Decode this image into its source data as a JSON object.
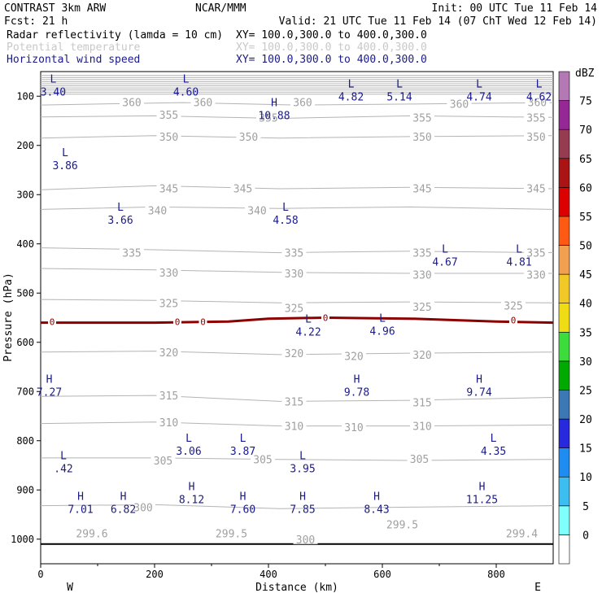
{
  "header": {
    "line1_left": "CONTRAST  3km ARW",
    "line1_center": "NCAR/MMM",
    "line1_right": "Init: 00 UTC Tue 11 Feb 14",
    "line2_left": "Fcst:   21 h",
    "line2_right": "Valid: 21 UTC Tue 11 Feb 14 (07 ChT Wed 12 Feb 14)",
    "fields": [
      {
        "name": "Radar reflectivity (lamda = 10 cm)",
        "xy": "XY= 100.0,300.0 to 400.0,300.0",
        "color": "#000000"
      },
      {
        "name": "Potential temperature",
        "xy": "XY= 100.0,300.0 to 400.0,300.0",
        "color": "#c8c8c8"
      },
      {
        "name": "Horizontal wind speed",
        "xy": "XY= 100.0,300.0 to 400.0,300.0",
        "color": "#1a1a8c"
      }
    ]
  },
  "colorbar": {
    "unit": "dBZ",
    "levels": [
      0,
      5,
      10,
      15,
      20,
      25,
      30,
      35,
      40,
      45,
      50,
      55,
      60,
      65,
      70,
      75
    ],
    "colors": [
      "#ffffff",
      "#80ffff",
      "#3cbef0",
      "#1e8cf0",
      "#2828dc",
      "#3c78b4",
      "#00aa00",
      "#3cdc3c",
      "#f0dc14",
      "#f0c828",
      "#f0a050",
      "#ff5a14",
      "#dc0000",
      "#aa1414",
      "#963c50",
      "#962896",
      "#b478b4"
    ]
  },
  "chart_data": {
    "type": "cross-section",
    "xlabel": "Distance (km)",
    "ylabel": "Pressure (hPa)",
    "xlim": [
      0,
      900
    ],
    "ylim": [
      1050,
      50
    ],
    "xticks": [
      0,
      200,
      400,
      600,
      800
    ],
    "yticks": [
      100,
      200,
      300,
      400,
      500,
      600,
      700,
      800,
      900,
      1000
    ],
    "x_endpoints": {
      "left": "W",
      "right": "E"
    },
    "theta_contours": [
      {
        "value": 360,
        "points": [
          [
            0,
            118
          ],
          [
            250,
            113
          ],
          [
            450,
            118
          ],
          [
            650,
            116
          ],
          [
            900,
            113
          ]
        ]
      },
      {
        "value": 355,
        "points": [
          [
            0,
            142
          ],
          [
            200,
            140
          ],
          [
            420,
            145
          ],
          [
            650,
            140
          ],
          [
            900,
            143
          ]
        ]
      },
      {
        "value": 350,
        "points": [
          [
            0,
            185
          ],
          [
            200,
            180
          ],
          [
            420,
            185
          ],
          [
            650,
            182
          ],
          [
            900,
            180
          ]
        ]
      },
      {
        "value": 345,
        "points": [
          [
            0,
            290
          ],
          [
            200,
            282
          ],
          [
            420,
            288
          ],
          [
            650,
            285
          ],
          [
            900,
            288
          ]
        ]
      },
      {
        "value": 340,
        "points": [
          [
            0,
            330
          ],
          [
            200,
            325
          ],
          [
            420,
            328
          ],
          [
            650,
            325
          ],
          [
            900,
            330
          ]
        ]
      },
      {
        "value": 335,
        "points": [
          [
            0,
            408
          ],
          [
            200,
            412
          ],
          [
            420,
            418
          ],
          [
            650,
            415
          ],
          [
            900,
            418
          ]
        ]
      },
      {
        "value": 330,
        "points": [
          [
            0,
            450
          ],
          [
            200,
            453
          ],
          [
            420,
            458
          ],
          [
            650,
            460
          ],
          [
            900,
            460
          ]
        ]
      },
      {
        "value": 325,
        "points": [
          [
            0,
            513
          ],
          [
            200,
            515
          ],
          [
            420,
            520
          ],
          [
            650,
            518
          ],
          [
            900,
            520
          ]
        ]
      },
      {
        "value": 320,
        "points": [
          [
            0,
            620
          ],
          [
            200,
            618
          ],
          [
            420,
            625
          ],
          [
            650,
            622
          ],
          [
            900,
            620
          ]
        ]
      },
      {
        "value": 315,
        "points": [
          [
            0,
            710
          ],
          [
            200,
            708
          ],
          [
            420,
            720
          ],
          [
            650,
            718
          ],
          [
            900,
            712
          ]
        ]
      },
      {
        "value": 310,
        "points": [
          [
            0,
            765
          ],
          [
            200,
            762
          ],
          [
            420,
            770
          ],
          [
            650,
            770
          ],
          [
            900,
            768
          ]
        ]
      },
      {
        "value": 305,
        "points": [
          [
            0,
            835
          ],
          [
            200,
            835
          ],
          [
            420,
            838
          ],
          [
            650,
            840
          ],
          [
            900,
            838
          ]
        ]
      },
      {
        "value": 300,
        "points": [
          [
            0,
            932
          ],
          [
            200,
            930
          ],
          [
            420,
            938
          ],
          [
            650,
            935
          ],
          [
            900,
            932
          ]
        ]
      }
    ],
    "theta_labels": [
      {
        "text": "360",
        "x": 160,
        "p": 112
      },
      {
        "text": "360",
        "x": 285,
        "p": 112
      },
      {
        "text": "360",
        "x": 460,
        "p": 112
      },
      {
        "text": "360",
        "x": 735,
        "p": 115
      },
      {
        "text": "360",
        "x": 872,
        "p": 112
      },
      {
        "text": "355",
        "x": 225,
        "p": 138
      },
      {
        "text": "355",
        "x": 400,
        "p": 143
      },
      {
        "text": "355",
        "x": 670,
        "p": 143
      },
      {
        "text": "355",
        "x": 870,
        "p": 143
      },
      {
        "text": "350",
        "x": 225,
        "p": 182
      },
      {
        "text": "350",
        "x": 365,
        "p": 182
      },
      {
        "text": "350",
        "x": 670,
        "p": 182
      },
      {
        "text": "350",
        "x": 870,
        "p": 182
      },
      {
        "text": "345",
        "x": 225,
        "p": 287
      },
      {
        "text": "345",
        "x": 355,
        "p": 287
      },
      {
        "text": "345",
        "x": 670,
        "p": 287
      },
      {
        "text": "345",
        "x": 870,
        "p": 287
      },
      {
        "text": "340",
        "x": 205,
        "p": 332
      },
      {
        "text": "340",
        "x": 380,
        "p": 332
      },
      {
        "text": "335",
        "x": 160,
        "p": 418
      },
      {
        "text": "335",
        "x": 445,
        "p": 418
      },
      {
        "text": "335",
        "x": 670,
        "p": 418
      },
      {
        "text": "335",
        "x": 870,
        "p": 418
      },
      {
        "text": "330",
        "x": 225,
        "p": 458
      },
      {
        "text": "330",
        "x": 445,
        "p": 460
      },
      {
        "text": "330",
        "x": 670,
        "p": 462
      },
      {
        "text": "330",
        "x": 870,
        "p": 462
      },
      {
        "text": "325",
        "x": 225,
        "p": 520
      },
      {
        "text": "325",
        "x": 445,
        "p": 530
      },
      {
        "text": "325",
        "x": 670,
        "p": 528
      },
      {
        "text": "325",
        "x": 830,
        "p": 525
      },
      {
        "text": "320",
        "x": 225,
        "p": 620
      },
      {
        "text": "320",
        "x": 445,
        "p": 622
      },
      {
        "text": "320",
        "x": 550,
        "p": 628
      },
      {
        "text": "320",
        "x": 670,
        "p": 625
      },
      {
        "text": "315",
        "x": 225,
        "p": 708
      },
      {
        "text": "315",
        "x": 445,
        "p": 720
      },
      {
        "text": "315",
        "x": 670,
        "p": 722
      },
      {
        "text": "310",
        "x": 225,
        "p": 762
      },
      {
        "text": "310",
        "x": 445,
        "p": 770
      },
      {
        "text": "310",
        "x": 550,
        "p": 772
      },
      {
        "text": "310",
        "x": 670,
        "p": 770
      },
      {
        "text": "305",
        "x": 215,
        "p": 840
      },
      {
        "text": "305",
        "x": 390,
        "p": 838
      },
      {
        "text": "305",
        "x": 665,
        "p": 837
      },
      {
        "text": "300",
        "x": 180,
        "p": 935
      },
      {
        "text": "300",
        "x": 465,
        "p": 1000
      },
      {
        "text": "299.6",
        "x": 90,
        "p": 988
      },
      {
        "text": "299.5",
        "x": 335,
        "p": 988
      },
      {
        "text": "299.5",
        "x": 635,
        "p": 970
      },
      {
        "text": "299.4",
        "x": 845,
        "p": 988
      }
    ],
    "reflectivity_zero_contour": {
      "value": 0,
      "points": [
        [
          0,
          560
        ],
        [
          200,
          560
        ],
        [
          330,
          558
        ],
        [
          400,
          552
        ],
        [
          500,
          550
        ],
        [
          650,
          552
        ],
        [
          800,
          558
        ],
        [
          900,
          560
        ]
      ],
      "labels": [
        {
          "x": 20,
          "p": 558
        },
        {
          "x": 240,
          "p": 558
        },
        {
          "x": 285,
          "p": 558
        },
        {
          "x": 500,
          "p": 550
        },
        {
          "x": 830,
          "p": 555
        }
      ]
    },
    "wind_extrema": [
      {
        "type": "L",
        "value": "3.40",
        "x": 22,
        "p": 72
      },
      {
        "type": "L",
        "value": "4.60",
        "x": 255,
        "p": 72
      },
      {
        "type": "L",
        "value": "4.82",
        "x": 545,
        "p": 82
      },
      {
        "type": "L",
        "value": "5.14",
        "x": 630,
        "p": 82
      },
      {
        "type": "L",
        "value": "4.74",
        "x": 770,
        "p": 82
      },
      {
        "type": "L",
        "value": "4.62",
        "x": 875,
        "p": 82
      },
      {
        "type": "H",
        "value": "10.88",
        "x": 410,
        "p": 120
      },
      {
        "type": "L",
        "value": "3.86",
        "x": 43,
        "p": 222
      },
      {
        "type": "L",
        "value": "3.66",
        "x": 140,
        "p": 333
      },
      {
        "type": "L",
        "value": "4.58",
        "x": 430,
        "p": 333
      },
      {
        "type": "L",
        "value": "4.67",
        "x": 710,
        "p": 418
      },
      {
        "type": "L",
        "value": "4.81",
        "x": 840,
        "p": 418
      },
      {
        "type": "L",
        "value": "4.22",
        "x": 470,
        "p": 560
      },
      {
        "type": "L",
        "value": "4.96",
        "x": 600,
        "p": 558
      },
      {
        "type": "H",
        "value": "7.27",
        "x": 15,
        "p": 682
      },
      {
        "type": "H",
        "value": "9.78",
        "x": 555,
        "p": 682
      },
      {
        "type": "H",
        "value": "9.74",
        "x": 770,
        "p": 682
      },
      {
        "type": "L",
        "value": "3.06",
        "x": 260,
        "p": 802
      },
      {
        "type": "L",
        "value": "3.87",
        "x": 355,
        "p": 802
      },
      {
        "type": "L",
        "value": "4.35",
        "x": 795,
        "p": 802
      },
      {
        "type": "L",
        "value": ".42",
        "x": 40,
        "p": 838
      },
      {
        "type": "L",
        "value": "3.95",
        "x": 460,
        "p": 838
      },
      {
        "type": "H",
        "value": "7.01",
        "x": 70,
        "p": 920
      },
      {
        "type": "H",
        "value": "6.82",
        "x": 145,
        "p": 920
      },
      {
        "type": "H",
        "value": "8.12",
        "x": 265,
        "p": 900
      },
      {
        "type": "H",
        "value": "7.60",
        "x": 355,
        "p": 920
      },
      {
        "type": "H",
        "value": "7.85",
        "x": 460,
        "p": 920
      },
      {
        "type": "H",
        "value": "8.43",
        "x": 590,
        "p": 920
      },
      {
        "type": "H",
        "value": "11.25",
        "x": 775,
        "p": 900
      }
    ]
  }
}
